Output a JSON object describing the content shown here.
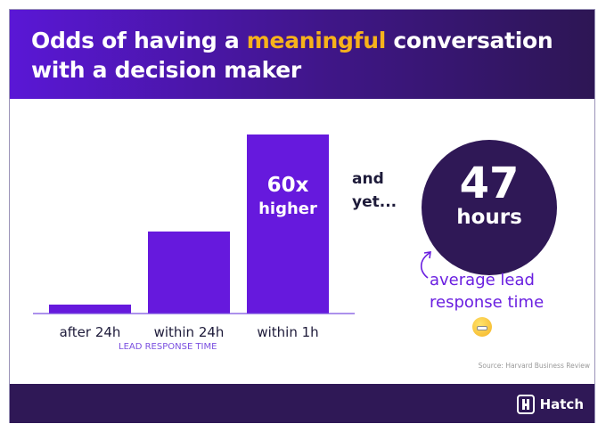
{
  "header": {
    "title_before": "Odds of having a ",
    "title_highlight": "meaningful",
    "title_after": " conversation with a decision maker",
    "highlight_color": "#f7b21b"
  },
  "chart_data": {
    "type": "bar",
    "categories": [
      "after 24h",
      "within 24h",
      "within 1h"
    ],
    "values": [
      3,
      27.5,
      60
    ],
    "xlabel": "LEAD RESPONSE TIME",
    "bar_color": "#6619dd",
    "annotation": {
      "line1": "60x",
      "line2": "higher"
    }
  },
  "callout": {
    "and": "and",
    "yet": "yet...",
    "number": "47",
    "unit": "hours",
    "caption_line1": "average lead",
    "caption_line2": "response time",
    "emoji": "grimacing-face-icon"
  },
  "source": "Source: Harvard Business Review",
  "footer": {
    "brand": "Hatch"
  }
}
